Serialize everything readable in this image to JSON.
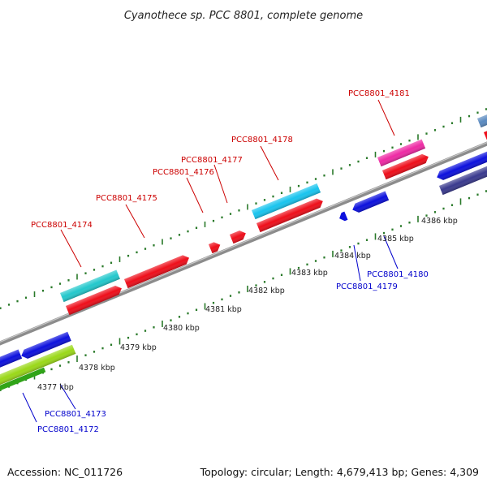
{
  "title": "Cyanothece sp. PCC 8801, complete genome",
  "footer": {
    "accession": "Accession: NC_011726",
    "summary": "Topology: circular; Length: 4,679,413 bp; Genes: 4,309"
  },
  "colors": {
    "forward_label": "#cc0000",
    "reverse_label": "#0000cc",
    "backbone": "#8c8c8c",
    "tick": "#2a7a2a"
  },
  "scale_labels": [
    "4377 kbp",
    "4378 kbp",
    "4379 kbp",
    "4380 kbp",
    "4381 kbp",
    "4382 kbp",
    "4383 kbp",
    "4384 kbp",
    "4385 kbp",
    "4386 kbp"
  ],
  "gene_labels": {
    "forward": [
      "PCC8801_4174",
      "PCC8801_4175",
      "PCC8801_4176",
      "PCC8801_4177",
      "PCC8801_4178",
      "PCC8801_4181"
    ],
    "reverse": [
      "PCC8801_4173",
      "PCC8801_4172",
      "PCC8801_4179",
      "PCC8801_4180"
    ]
  }
}
